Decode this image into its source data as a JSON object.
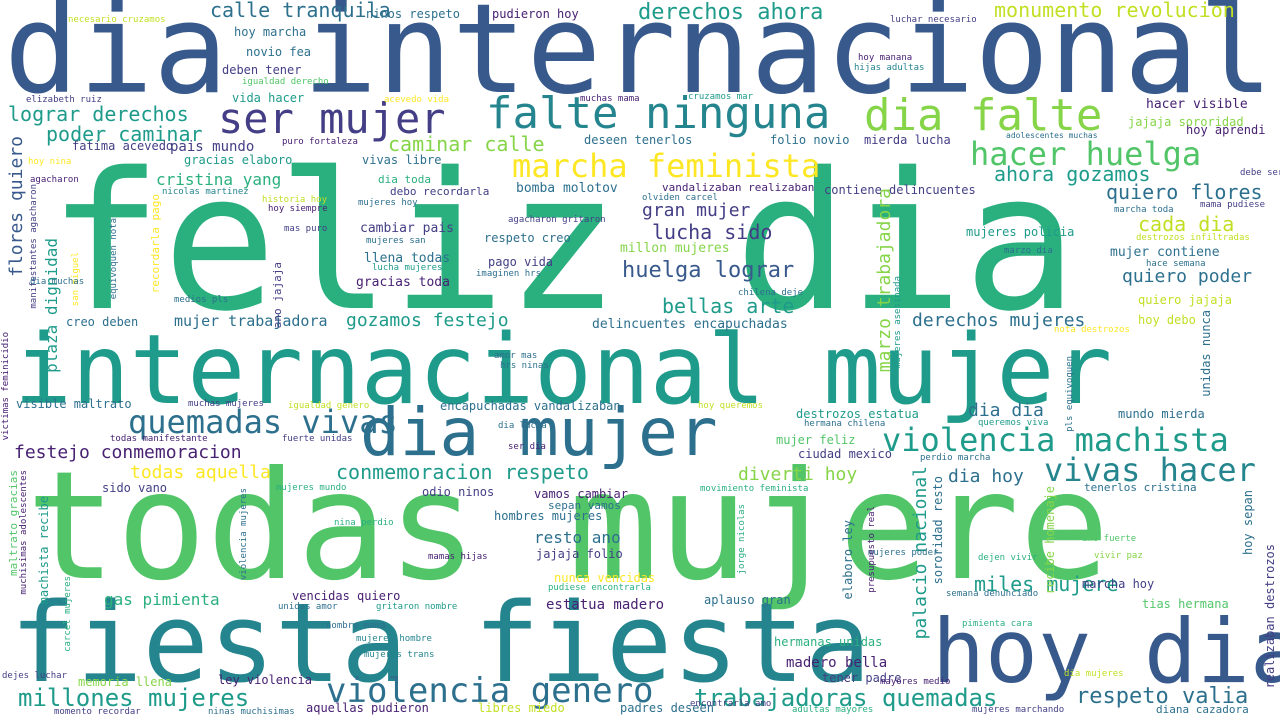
{
  "palette": {
    "dark_purple": "#482173",
    "indigo": "#433e85",
    "blue": "#38598c",
    "steel": "#2d708e",
    "teal": "#25858e",
    "green_teal": "#1e9b8a",
    "green": "#2ab07f",
    "light_green": "#52c569",
    "lime": "#86d549",
    "yellow": "#c2df23",
    "bright_yellow": "#fde725"
  },
  "words": [
    "dia internacional",
    "feliz dia",
    "internacional mujer",
    "todas mujere",
    "fiesta fiesta",
    "hoy dia",
    "dia mujer",
    "ser mujer",
    "falte ninguna",
    "dia falte",
    "marcha feminista",
    "hacer huelga",
    "violencia machista",
    "vivas hacer",
    "quemadas vivas",
    "violencia genero",
    "millones mujeres",
    "trabajadoras quemadas",
    "respeto valia",
    "calle tranquila",
    "derechos ahora",
    "monumento revolucion",
    "lograr derechos",
    "poder caminar",
    "caminar calle",
    "ahora gozamos",
    "quiero flores",
    "cada dia",
    "cristina yang",
    "gran mujer",
    "lucha sido",
    "huelga lograr",
    "bellas arte",
    "quiero poder",
    "mujer trabajadora",
    "gozamos festejo",
    "derechos mujeres",
    "festejo conmemoracion",
    "todas aquella",
    "conmemoracion respeto",
    "dia dia",
    "dia hoy",
    "miles mujere",
    "diverti hoy",
    "gas pimienta",
    "resto ano",
    "estatua madero",
    "madero bella",
    "flores quiero",
    "marzo trabajadora",
    "palacio nacional",
    "plaza dignidad",
    "mujer contiene",
    "delincuentes encapuchadas",
    "encapuchadas vandalizaban",
    "mujeres policia",
    "gracias toda",
    "llena todas",
    "pago vida",
    "respeto creo",
    "cambiar pais",
    "millon mujeres",
    "pais mundo",
    "fatima acevedo",
    "gracias elaboro",
    "vivas libre",
    "bomba molotov",
    "vandalizaban realizaban",
    "contiene delincuentes",
    "hoy aprendi",
    "jajaja sororidad",
    "hacer visible",
    "deseen tenerlos",
    "folio novio",
    "mierda lucha",
    "dia toda",
    "debo recordarla",
    "hoy marcha",
    "novio fea",
    "deben tener",
    "vida hacer",
    "ninos respeto",
    "pudieron hoy",
    "elizabeth ruiz",
    "muchas mama",
    "cruzamos mar",
    "hoy manana",
    "hijas adultas",
    "adolescentes muchas",
    "visible maltrato",
    "ciudad mexico",
    "mujer feliz",
    "mundo mierda",
    "destrozos estatua",
    "unidas nunca",
    "sido vano",
    "odio ninos",
    "vamos cambiar",
    "hombres mujeres",
    "nunca vencidas",
    "vencidas quiero",
    "aplauso gran",
    "hermanas unidas",
    "tener padre",
    "tenerlos cristina",
    "hoy sepan",
    "ley violencia",
    "memoria llena",
    "aquellas pudieron",
    "libres miedo",
    "padres deseen",
    "diana cazadora",
    "marcha hoy",
    "tias hermana",
    "creo deben",
    "machista recibe",
    "recibe homenaje",
    "sororidad resto",
    "elaboro ley",
    "jajaja folio",
    "hoy debo",
    "quiero jajaja",
    "realizaban destrozos",
    "amo fuerte",
    "vivir paz",
    "dejen vivir",
    "mujeres marchando",
    "adultas mayores",
    "encontrarla amo",
    "momento recordar",
    "ninas muchisimas",
    "dejes luchar",
    "mayores medio",
    "semana denunciado",
    "pimienta cara",
    "dia mujeres",
    "sepan vamos",
    "necesario cruzamos",
    "luchar necesario",
    "igualdad derecho",
    "acevedo vida",
    "hoy nina",
    "debe ser",
    "mama pudiese",
    "marcha toda",
    "destrozos infiltradas",
    "marzo dia",
    "hace semana",
    "nicolas martinez",
    "historia hoy",
    "hoy siempre",
    "mas puro",
    "mujeres san",
    "medios pls",
    "equivoquen nota",
    "lucha mujeres",
    "imaginen hrs",
    "chilena deje",
    "mujeres asesinada",
    "nota destrozos",
    "agacharon gritaron",
    "amor mas",
    "hrs ninas",
    "puro fortaleza",
    "olviden carcel",
    "mujeres hoy",
    "muchas mujeres",
    "todas manifestante",
    "fuerte unidas",
    "dia lucha",
    "ser dia",
    "hermana chilena",
    "queremos viva",
    "perdio marcha",
    "mujeres mundo",
    "movimiento feminista",
    "nina perdio",
    "mamas hijas",
    "jorge nicolas",
    "gritaron nombre",
    "mujeres poder",
    "presupuesto real",
    "nombre mama",
    "mujeres hombre",
    "mujeres trans",
    "unidas amor",
    "pudiese encontrarla",
    "igualdad genero",
    "hoy queremos",
    "victimas feminicidio",
    "muchisimas adolescentes",
    "maltrato gracias",
    "carcel mujeres",
    "violencia mujeres",
    "san miguel",
    "recordarla pago",
    "manifestantes agacharon",
    "ano jajaja",
    "pls equivoquen",
    "dia muchas",
    "agacharon"
  ]
}
